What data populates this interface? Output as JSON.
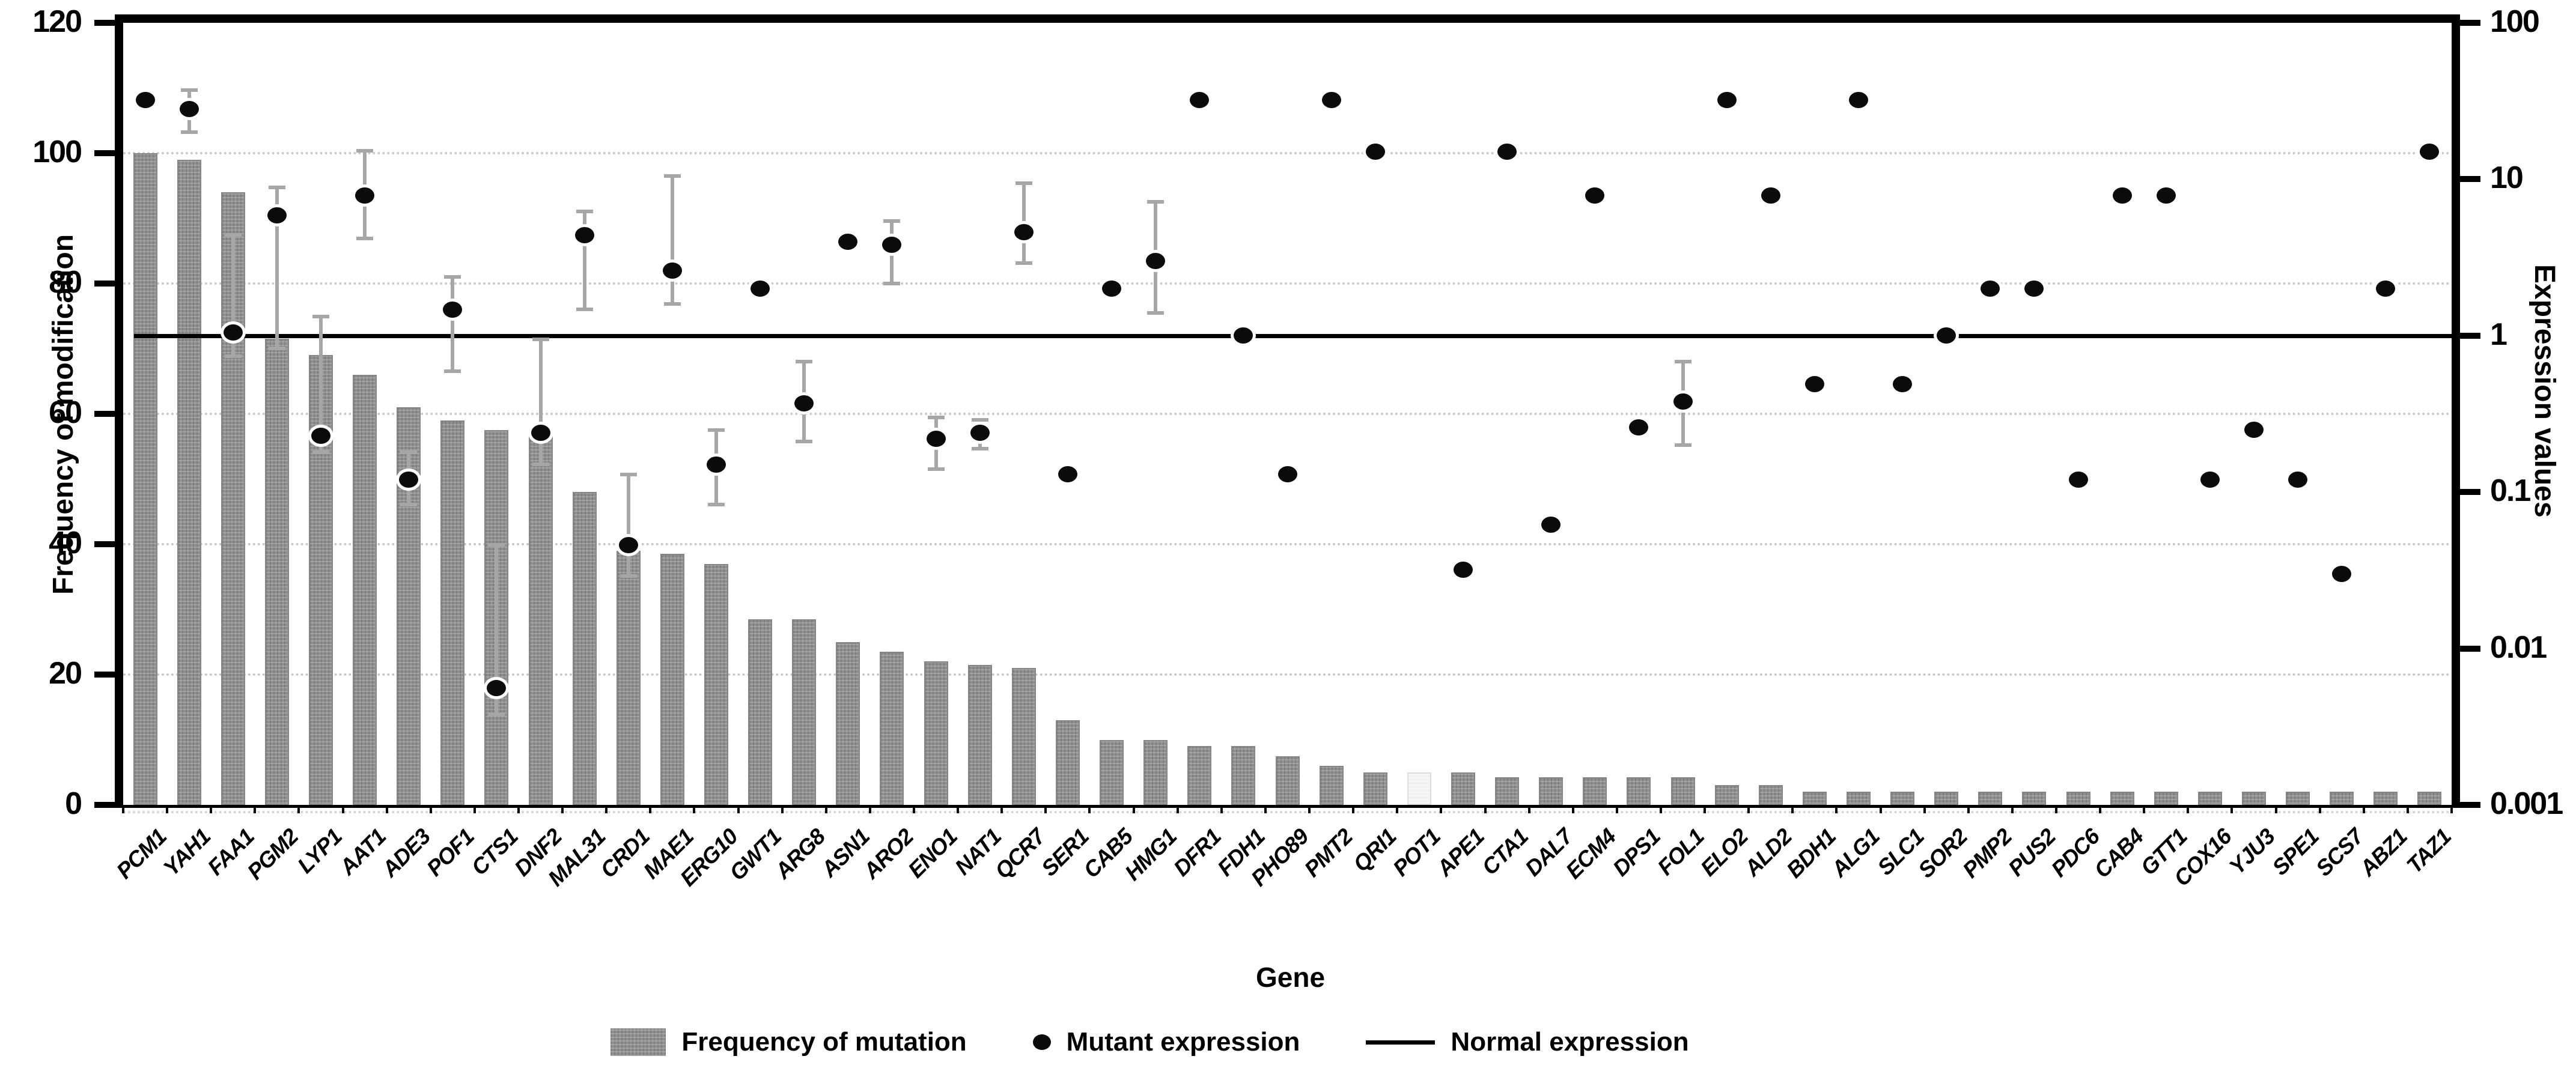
{
  "chart_data": {
    "type": "combo-bar-scatter",
    "title": "",
    "xlabel": "Gene",
    "ylabel_left": "Frequency of modification",
    "ylabel_right": "Expression values",
    "left_axis": {
      "min": 0,
      "max": 120,
      "tick_step": 20,
      "ticks": [
        "0",
        "20",
        "40",
        "60",
        "80",
        "100",
        "120"
      ],
      "grid": true
    },
    "right_axis": {
      "scale": "log",
      "min": 0.001,
      "max": 100,
      "ticks": [
        "100",
        "10",
        "1",
        "0.1",
        "0.01",
        "0.001"
      ]
    },
    "series": [
      {
        "name": "Frequency of mutation",
        "type": "bar",
        "axis": "left"
      },
      {
        "name": "Mutant expression",
        "type": "scatter",
        "axis": "right"
      },
      {
        "name": "Normal expression",
        "type": "line",
        "axis": "right",
        "value": 1
      }
    ],
    "normal_expression_value": 1,
    "genes": [
      {
        "name": "PCM1",
        "freq": 100,
        "expr": 32,
        "err": null
      },
      {
        "name": "YAH1",
        "freq": 99,
        "expr": 28,
        "err": [
          20,
          37
        ]
      },
      {
        "name": "FAA1",
        "freq": 94,
        "expr": 1.05,
        "err": [
          0.74,
          4.4
        ]
      },
      {
        "name": "PGM2",
        "freq": 71.5,
        "expr": 5.9,
        "err": [
          0.83,
          8.9
        ]
      },
      {
        "name": "LYP1",
        "freq": 69,
        "expr": 0.23,
        "err": [
          0.18,
          1.33
        ]
      },
      {
        "name": "AAT1",
        "freq": 66,
        "expr": 7.9,
        "err": [
          4.2,
          15.2
        ]
      },
      {
        "name": "ADE3",
        "freq": 61,
        "expr": 0.12,
        "err": [
          0.083,
          0.18
        ]
      },
      {
        "name": "POF1",
        "freq": 59,
        "expr": 1.47,
        "err": [
          0.59,
          2.37
        ]
      },
      {
        "name": "CTS1",
        "freq": 57.5,
        "expr": 0.0056,
        "err": [
          0.0038,
          0.046
        ]
      },
      {
        "name": "DNF2",
        "freq": 57.5,
        "expr": 0.24,
        "err": [
          0.15,
          0.95
        ]
      },
      {
        "name": "MAL31",
        "freq": 48,
        "expr": 4.4,
        "err": [
          1.47,
          6.2
        ]
      },
      {
        "name": "CRD1",
        "freq": 39,
        "expr": 0.046,
        "err": [
          0.029,
          0.13
        ]
      },
      {
        "name": "MAE1",
        "freq": 38.5,
        "expr": 2.6,
        "err": [
          1.6,
          10.5
        ]
      },
      {
        "name": "ERG10",
        "freq": 37,
        "expr": 0.15,
        "err": [
          0.083,
          0.25
        ]
      },
      {
        "name": "GWT1",
        "freq": 28.5,
        "expr": 2.0,
        "err": null
      },
      {
        "name": "ARG8",
        "freq": 28.5,
        "expr": 0.37,
        "err": [
          0.21,
          0.68
        ]
      },
      {
        "name": "ASN1",
        "freq": 25,
        "expr": 4.0,
        "err": null
      },
      {
        "name": "ARO2",
        "freq": 23.5,
        "expr": 3.8,
        "err": [
          2.15,
          5.4
        ]
      },
      {
        "name": "ENO1",
        "freq": 22,
        "expr": 0.22,
        "err": [
          0.14,
          0.3
        ]
      },
      {
        "name": "NAT1",
        "freq": 21.5,
        "expr": 0.24,
        "err": [
          0.19,
          0.29
        ]
      },
      {
        "name": "QCR7",
        "freq": 21,
        "expr": 4.6,
        "err": [
          2.9,
          9.4
        ]
      },
      {
        "name": "SER1",
        "freq": 13,
        "expr": 0.13,
        "err": null
      },
      {
        "name": "CAB5",
        "freq": 10,
        "expr": 2.0,
        "err": null
      },
      {
        "name": "HMG1",
        "freq": 10,
        "expr": 3.0,
        "err": [
          1.4,
          7.2
        ]
      },
      {
        "name": "DFR1",
        "freq": 9,
        "expr": 32,
        "err": null
      },
      {
        "name": "FDH1",
        "freq": 9,
        "expr": 1.0,
        "err": null
      },
      {
        "name": "PHO89",
        "freq": 7.5,
        "expr": 0.13,
        "err": null
      },
      {
        "name": "PMT2",
        "freq": 6,
        "expr": 32,
        "err": null
      },
      {
        "name": "QRI1",
        "freq": 5,
        "expr": 15,
        "err": null
      },
      {
        "name": "POT1",
        "freq": 5,
        "expr": null,
        "err": null,
        "light": true
      },
      {
        "name": "APE1",
        "freq": 5,
        "expr": 0.032,
        "err": null
      },
      {
        "name": "CTA1",
        "freq": 4.2,
        "expr": 15,
        "err": null
      },
      {
        "name": "DAL7",
        "freq": 4.2,
        "expr": 0.062,
        "err": null
      },
      {
        "name": "ECM4",
        "freq": 4.2,
        "expr": 7.9,
        "err": null
      },
      {
        "name": "DPS1",
        "freq": 4.2,
        "expr": 0.26,
        "err": null
      },
      {
        "name": "FOL1",
        "freq": 4.2,
        "expr": 0.38,
        "err": [
          0.2,
          0.68
        ]
      },
      {
        "name": "ELO2",
        "freq": 3,
        "expr": 32,
        "err": null
      },
      {
        "name": "ALD2",
        "freq": 3,
        "expr": 7.9,
        "err": null
      },
      {
        "name": "BDH1",
        "freq": 2,
        "expr": 0.49,
        "err": null
      },
      {
        "name": "ALG1",
        "freq": 2,
        "expr": 32,
        "err": null
      },
      {
        "name": "SLC1",
        "freq": 2,
        "expr": 0.49,
        "err": null
      },
      {
        "name": "SOR2",
        "freq": 2,
        "expr": 1.0,
        "err": null
      },
      {
        "name": "PMP2",
        "freq": 2,
        "expr": 2.0,
        "err": null
      },
      {
        "name": "PUS2",
        "freq": 2,
        "expr": 2.0,
        "err": null
      },
      {
        "name": "PDC6",
        "freq": 2,
        "expr": 0.12,
        "err": null
      },
      {
        "name": "CAB4",
        "freq": 2,
        "expr": 7.9,
        "err": null
      },
      {
        "name": "GTT1",
        "freq": 2,
        "expr": 7.9,
        "err": null
      },
      {
        "name": "COX16",
        "freq": 2,
        "expr": 0.12,
        "err": null
      },
      {
        "name": "YJU3",
        "freq": 2,
        "expr": 0.25,
        "err": null
      },
      {
        "name": "SPE1",
        "freq": 2,
        "expr": 0.12,
        "err": null
      },
      {
        "name": "SCS7",
        "freq": 2,
        "expr": 0.03,
        "err": null
      },
      {
        "name": "ABZ1",
        "freq": 2,
        "expr": 2.0,
        "err": null
      },
      {
        "name": "TAZ1",
        "freq": 2,
        "expr": 15,
        "err": null
      }
    ]
  },
  "legend": {
    "items": [
      {
        "swatch": "bar-swatch",
        "label": "Frequency of mutation"
      },
      {
        "swatch": "dot-swatch",
        "label": "Mutant expression"
      },
      {
        "swatch": "line-swatch",
        "label": "Normal expression"
      }
    ]
  },
  "colors": {
    "bar": "#8f8f8f",
    "bar_highlight": "#f1f1f1",
    "dot": "#0b0b0b",
    "error_bar": "#a6a6a6",
    "gridline": "#c9c9c9",
    "normal_line": "#000000",
    "axis": "#000000",
    "background": "#ffffff"
  }
}
